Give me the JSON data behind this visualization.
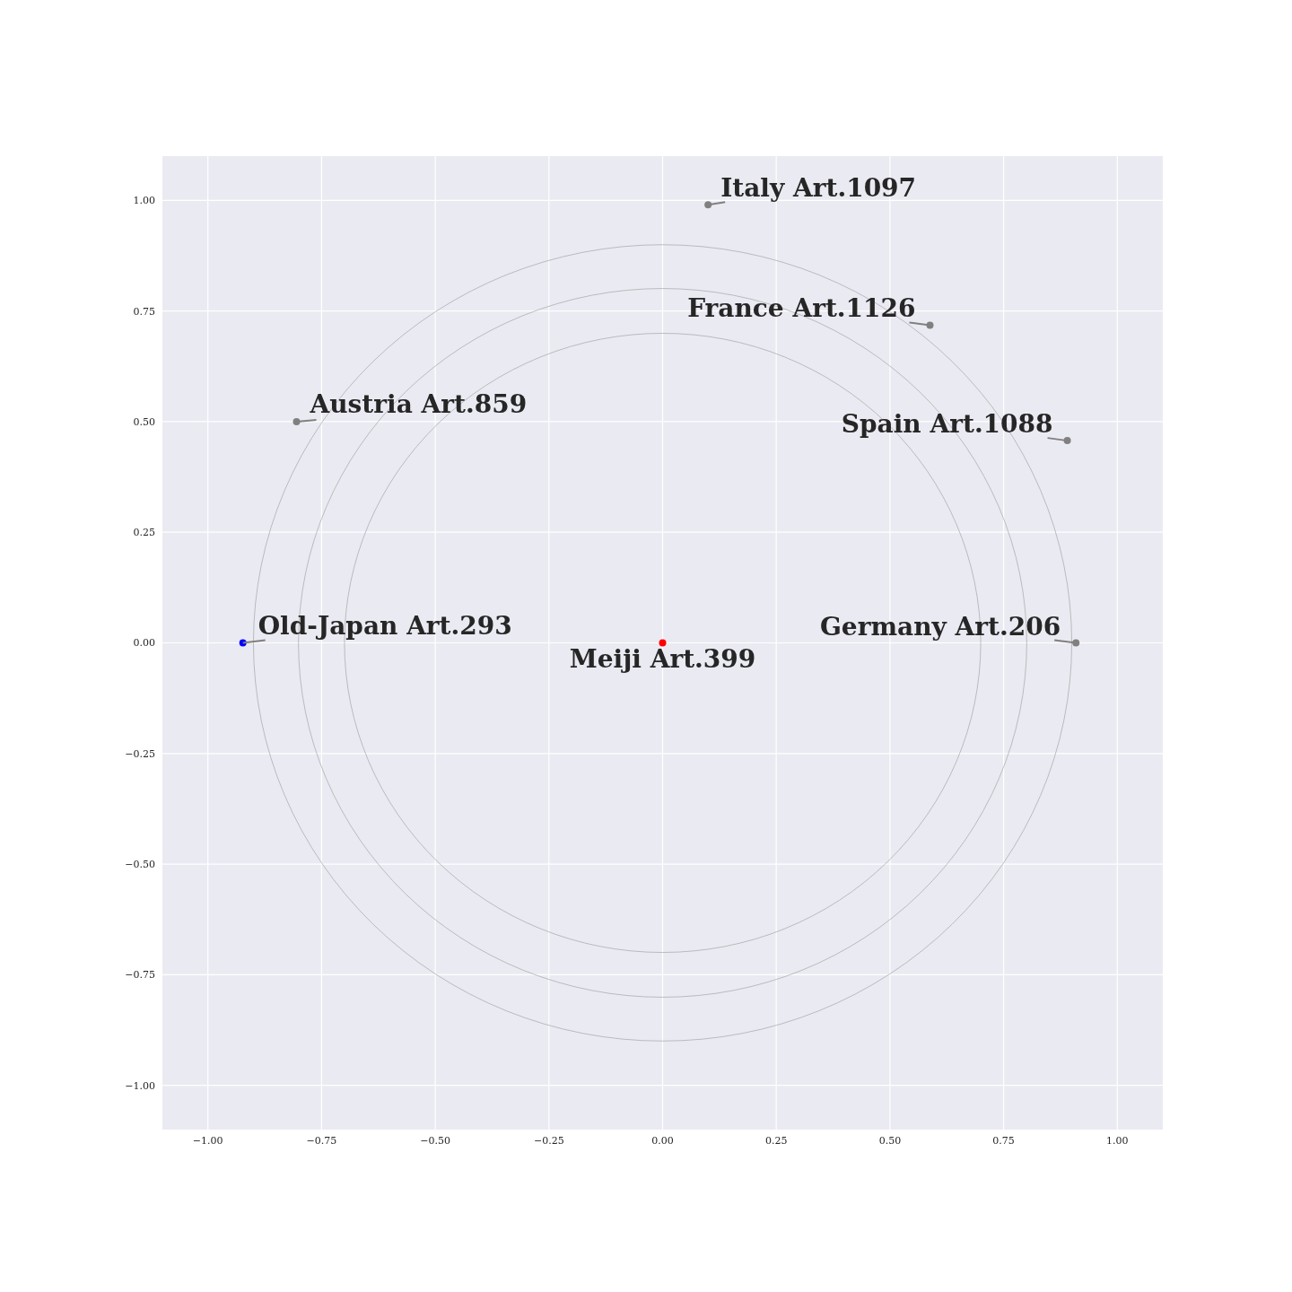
{
  "chart_data": {
    "type": "scatter",
    "grid": true,
    "xlim": [
      -1.1,
      1.1
    ],
    "ylim": [
      -1.1,
      1.1
    ],
    "xticks": [
      {
        "value": -1,
        "label": "−1.00"
      },
      {
        "value": -0.75,
        "label": "−0.75"
      },
      {
        "value": -0.5,
        "label": "−0.50"
      },
      {
        "value": -0.25,
        "label": "−0.25"
      },
      {
        "value": 0,
        "label": "0.00"
      },
      {
        "value": 0.25,
        "label": "0.25"
      },
      {
        "value": 0.5,
        "label": "0.50"
      },
      {
        "value": 0.75,
        "label": "0.75"
      },
      {
        "value": 1,
        "label": "1.00"
      }
    ],
    "yticks": [
      {
        "value": -1,
        "label": "−1.00"
      },
      {
        "value": -0.75,
        "label": "−0.75"
      },
      {
        "value": -0.5,
        "label": "−0.50"
      },
      {
        "value": -0.25,
        "label": "−0.25"
      },
      {
        "value": 0,
        "label": "0.00"
      },
      {
        "value": 0.25,
        "label": "0.25"
      },
      {
        "value": 0.5,
        "label": "0.50"
      },
      {
        "value": 0.75,
        "label": "0.75"
      },
      {
        "value": 1,
        "label": "1.00"
      }
    ],
    "series": [
      {
        "x": [
          0.1,
          0.588,
          -0.805,
          0.89,
          -0.923,
          0,
          0.909
        ],
        "values": [
          0.99,
          0.718,
          0.5,
          0.457,
          0,
          0,
          0
        ],
        "colors": [
          "#808080",
          "#808080",
          "#808080",
          "#808080",
          "#0000ff",
          "#ff0000",
          "#808080"
        ],
        "marker": "circle"
      }
    ],
    "annotations": [
      {
        "text": "Italy Art.1097",
        "x": 0.1,
        "y": 0.99
      },
      {
        "text": "France Art.1126",
        "x": 0.588,
        "y": 0.718
      },
      {
        "text": "Austria Art.859",
        "x": -0.805,
        "y": 0.5
      },
      {
        "text": "Spain Art.1088",
        "x": 0.89,
        "y": 0.457
      },
      {
        "text": "Old-Japan Art.293",
        "x": -0.923,
        "y": 0
      },
      {
        "text": "Meiji Art.399",
        "x": 0,
        "y": 0
      },
      {
        "text": "Germany Art.206",
        "x": 0.909,
        "y": 0
      }
    ]
  }
}
